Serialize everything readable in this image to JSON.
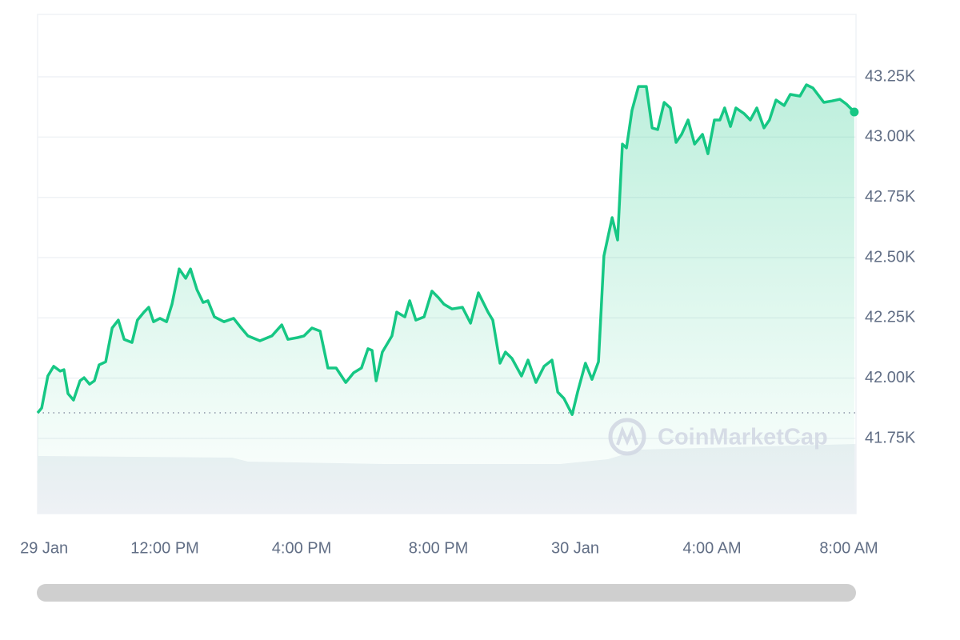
{
  "chart_data": {
    "type": "line",
    "watermark": "CoinMarketCap",
    "xlim": [
      8.28,
      32.21
    ],
    "xticks": [
      {
        "value": 8.47,
        "label": "29 Jan"
      },
      {
        "value": 12,
        "label": "12:00 PM"
      },
      {
        "value": 16,
        "label": "4:00 PM"
      },
      {
        "value": 20,
        "label": "8:00 PM"
      },
      {
        "value": 24,
        "label": "30 Jan"
      },
      {
        "value": 28,
        "label": "4:00 AM"
      },
      {
        "value": 32,
        "label": "8:00 AM"
      }
    ],
    "ylim": [
      41438,
      43509
    ],
    "yticks": [
      {
        "value": 41750,
        "label": "41.75K"
      },
      {
        "value": 42000,
        "label": "42.00K"
      },
      {
        "value": 42250,
        "label": "42.25K"
      },
      {
        "value": 42500,
        "label": "42.50K"
      },
      {
        "value": 42750,
        "label": "42.75K"
      },
      {
        "value": 43000,
        "label": "43.00K"
      },
      {
        "value": 43250,
        "label": "43.25K"
      }
    ],
    "grid": true,
    "reference_line": "first",
    "x": [
      8.28,
      8.4,
      8.58,
      8.75,
      8.94,
      9.05,
      9.17,
      9.33,
      9.52,
      9.64,
      9.8,
      9.94,
      10.08,
      10.27,
      10.46,
      10.64,
      10.81,
      11.04,
      11.2,
      11.39,
      11.53,
      11.67,
      11.86,
      12.05,
      12.21,
      12.42,
      12.61,
      12.75,
      12.94,
      13.12,
      13.26,
      13.45,
      13.73,
      14.01,
      14.2,
      14.43,
      14.78,
      15.13,
      15.42,
      15.6,
      15.88,
      16.07,
      16.3,
      16.54,
      16.77,
      17.01,
      17.29,
      17.52,
      17.75,
      17.94,
      18.06,
      18.18,
      18.36,
      18.64,
      18.78,
      19.02,
      19.16,
      19.34,
      19.58,
      19.81,
      20.0,
      20.16,
      20.4,
      20.7,
      20.94,
      21.17,
      21.45,
      21.59,
      21.8,
      21.96,
      22.15,
      22.43,
      22.62,
      22.85,
      23.09,
      23.32,
      23.49,
      23.67,
      23.91,
      24.07,
      24.3,
      24.49,
      24.68,
      24.84,
      25.08,
      25.24,
      25.38,
      25.5,
      25.66,
      25.85,
      26.08,
      26.25,
      26.41,
      26.6,
      26.78,
      26.95,
      27.11,
      27.3,
      27.49,
      27.72,
      27.88,
      28.07,
      28.23,
      28.37,
      28.54,
      28.7,
      28.94,
      29.12,
      29.31,
      29.52,
      29.68,
      29.87,
      30.11,
      30.29,
      30.57,
      30.76,
      30.95,
      31.13,
      31.27,
      31.51,
      31.74,
      31.93,
      32.16
    ],
    "series": [
      {
        "color": "#16c784",
        "values": [
          41856,
          41876,
          42009,
          42049,
          42029,
          42035,
          41936,
          41909,
          41989,
          42002,
          41975,
          41989,
          42055,
          42068,
          42208,
          42241,
          42161,
          42148,
          42241,
          42274,
          42294,
          42234,
          42248,
          42234,
          42307,
          42453,
          42414,
          42453,
          42367,
          42314,
          42321,
          42254,
          42234,
          42248,
          42214,
          42175,
          42155,
          42175,
          42221,
          42161,
          42168,
          42175,
          42208,
          42195,
          42042,
          42042,
          41982,
          42022,
          42042,
          42122,
          42115,
          41989,
          42108,
          42175,
          42274,
          42254,
          42321,
          42241,
          42254,
          42361,
          42334,
          42307,
          42287,
          42294,
          42228,
          42354,
          42274,
          42241,
          42062,
          42108,
          42082,
          42009,
          42075,
          41982,
          42049,
          42075,
          41942,
          41916,
          41849,
          41942,
          42062,
          41995,
          42068,
          42507,
          42666,
          42573,
          42971,
          42955,
          43111,
          43210,
          43210,
          43038,
          43031,
          43144,
          43121,
          42978,
          43011,
          43071,
          42971,
          43011,
          42931,
          43071,
          43071,
          43121,
          43044,
          43121,
          43097,
          43071,
          43121,
          43038,
          43071,
          43154,
          43131,
          43177,
          43170,
          43217,
          43204,
          43170,
          43144,
          43150,
          43157,
          43137,
          43104
        ]
      }
    ]
  }
}
